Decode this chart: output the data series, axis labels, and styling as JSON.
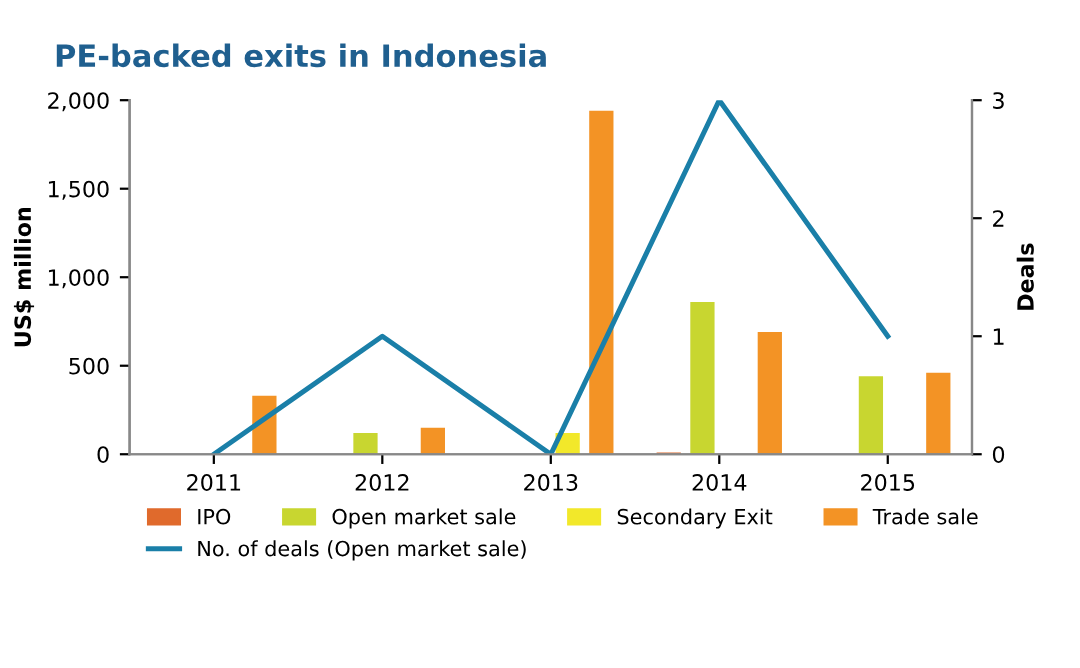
{
  "chart_data": {
    "type": "bar",
    "title": "PE-backed exits in Indonesia",
    "ylabel": "US$ million",
    "y2label": "Deals",
    "categories": [
      "2011",
      "2012",
      "2013",
      "2014",
      "2015"
    ],
    "series": [
      {
        "name": "IPO",
        "color": "#e06a2c",
        "values": [
          null,
          null,
          null,
          10,
          null
        ]
      },
      {
        "name": "Open market sale",
        "color": "#c8d630",
        "values": [
          null,
          120,
          null,
          860,
          440
        ]
      },
      {
        "name": "Secondary Exit",
        "color": "#f2e82a",
        "values": [
          null,
          null,
          120,
          null,
          null
        ]
      },
      {
        "name": "Trade sale",
        "color": "#f39325",
        "values": [
          330,
          150,
          1940,
          690,
          460
        ]
      },
      {
        "name": "No. of deals (Open market sale)",
        "type": "line",
        "axis": "y2",
        "color": "#1a7fa8",
        "values": [
          0,
          1,
          0,
          3,
          1
        ]
      }
    ],
    "ylim": [
      0,
      2000
    ],
    "yticks": [
      0,
      {
        "value": 500,
        "label": "500"
      },
      {
        "value": 1000,
        "label": "1,000"
      },
      {
        "value": 1500,
        "label": "1,500"
      },
      {
        "value": 2000,
        "label": "2,000"
      }
    ],
    "y2lim": [
      0,
      3
    ],
    "y2ticks": [
      0,
      1,
      2,
      3
    ],
    "grid": false,
    "legend": "bottom",
    "marker": "none",
    "line_style": "solid"
  }
}
